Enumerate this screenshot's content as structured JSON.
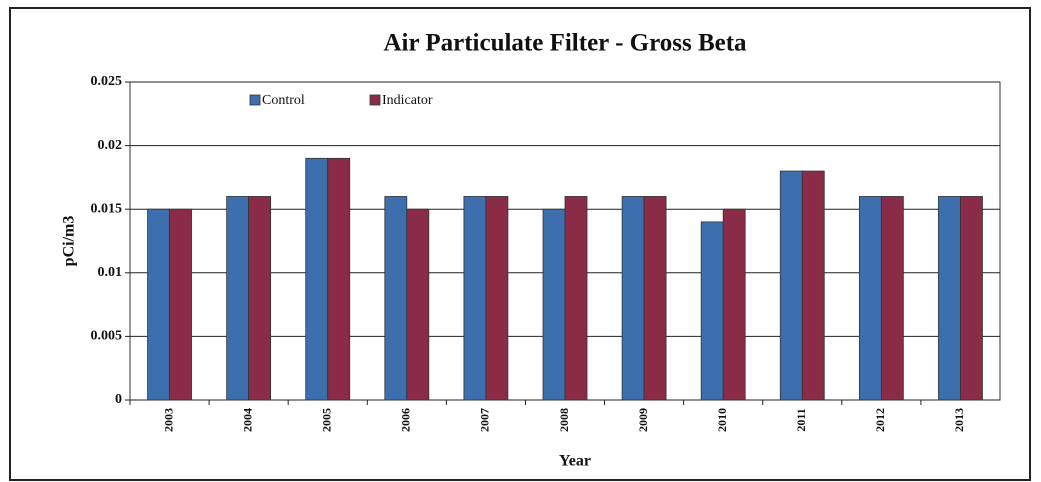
{
  "chart_data": {
    "type": "bar",
    "title": "Air Particulate Filter - Gross Beta",
    "x_label": "Year",
    "y_label": "pCi/m3",
    "categories": [
      "2003",
      "2004",
      "2005",
      "2006",
      "2007",
      "2008",
      "2009",
      "2010",
      "2011",
      "2012",
      "2013"
    ],
    "series": [
      {
        "name": "Control",
        "color": "#3d6fae",
        "values": [
          0.015,
          0.016,
          0.019,
          0.016,
          0.016,
          0.015,
          0.016,
          0.014,
          0.018,
          0.016,
          0.016
        ]
      },
      {
        "name": "Indicator",
        "color": "#8a2b47",
        "values": [
          0.015,
          0.016,
          0.019,
          0.015,
          0.016,
          0.016,
          0.016,
          0.015,
          0.018,
          0.016,
          0.016
        ]
      }
    ],
    "ylim": [
      0,
      0.025
    ],
    "yticks": [
      0,
      0.005,
      0.01,
      0.015,
      0.02,
      0.025
    ],
    "grid": true,
    "legend": "top-left"
  }
}
